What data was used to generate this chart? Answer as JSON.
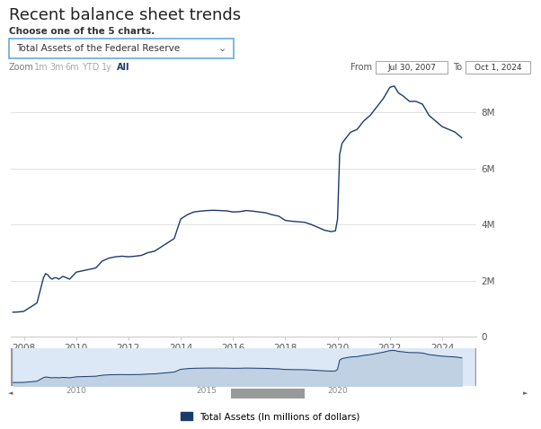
{
  "title": "Recent balance sheet trends",
  "subtitle": "Choose one of the 5 charts.",
  "dropdown_text": "Total Assets of the Federal Reserve",
  "zoom_label": "Zoom",
  "zoom_options": [
    "1m",
    "3m",
    "6m",
    "YTD",
    "1y",
    "All"
  ],
  "zoom_active": "All",
  "from_label": "From",
  "from_date": "Jul 30, 2007",
  "to_label": "To",
  "to_date": "Oct 1, 2024",
  "line_color": "#1a3a6b",
  "background_color": "#ffffff",
  "grid_color": "#dddddd",
  "ylabel_right": [
    "0",
    "2M",
    "4M",
    "6M",
    "8M"
  ],
  "ylabel_right_values": [
    0,
    2000000,
    4000000,
    6000000,
    8000000
  ],
  "x_ticks": [
    2008,
    2010,
    2012,
    2014,
    2016,
    2018,
    2020,
    2022,
    2024
  ],
  "legend_label": "Total Assets (In millions of dollars)",
  "legend_color": "#1a3a6b",
  "mini_ticks": [
    2010,
    2015,
    2020
  ],
  "data_x": [
    2007.58,
    2007.75,
    2008.0,
    2008.5,
    2008.75,
    2008.83,
    2008.92,
    2009.0,
    2009.08,
    2009.17,
    2009.25,
    2009.33,
    2009.5,
    2009.75,
    2010.0,
    2010.25,
    2010.5,
    2010.75,
    2011.0,
    2011.25,
    2011.5,
    2011.75,
    2012.0,
    2012.25,
    2012.5,
    2012.75,
    2013.0,
    2013.25,
    2013.5,
    2013.75,
    2014.0,
    2014.25,
    2014.5,
    2014.75,
    2015.0,
    2015.25,
    2015.5,
    2015.75,
    2016.0,
    2016.25,
    2016.5,
    2016.75,
    2017.0,
    2017.25,
    2017.5,
    2017.75,
    2018.0,
    2018.25,
    2018.5,
    2018.75,
    2019.0,
    2019.25,
    2019.5,
    2019.75,
    2019.83,
    2019.92,
    2020.0,
    2020.08,
    2020.17,
    2020.25,
    2020.33,
    2020.5,
    2020.75,
    2021.0,
    2021.25,
    2021.5,
    2021.75,
    2022.0,
    2022.17,
    2022.33,
    2022.5,
    2022.75,
    2023.0,
    2023.25,
    2023.5,
    2023.75,
    2024.0,
    2024.25,
    2024.5,
    2024.75
  ],
  "data_y": [
    870000,
    875000,
    900000,
    1200000,
    2100000,
    2250000,
    2200000,
    2100000,
    2050000,
    2100000,
    2100000,
    2050000,
    2150000,
    2050000,
    2300000,
    2350000,
    2400000,
    2450000,
    2700000,
    2800000,
    2850000,
    2870000,
    2850000,
    2870000,
    2900000,
    3000000,
    3050000,
    3200000,
    3350000,
    3500000,
    4200000,
    4350000,
    4450000,
    4480000,
    4500000,
    4510000,
    4500000,
    4490000,
    4450000,
    4460000,
    4500000,
    4480000,
    4450000,
    4420000,
    4350000,
    4300000,
    4150000,
    4120000,
    4100000,
    4080000,
    4000000,
    3900000,
    3800000,
    3750000,
    3760000,
    3780000,
    4200000,
    6500000,
    6900000,
    7000000,
    7100000,
    7300000,
    7400000,
    7700000,
    7900000,
    8200000,
    8500000,
    8900000,
    8950000,
    8700000,
    8600000,
    8400000,
    8400000,
    8300000,
    7900000,
    7700000,
    7500000,
    7400000,
    7300000,
    7100000
  ]
}
